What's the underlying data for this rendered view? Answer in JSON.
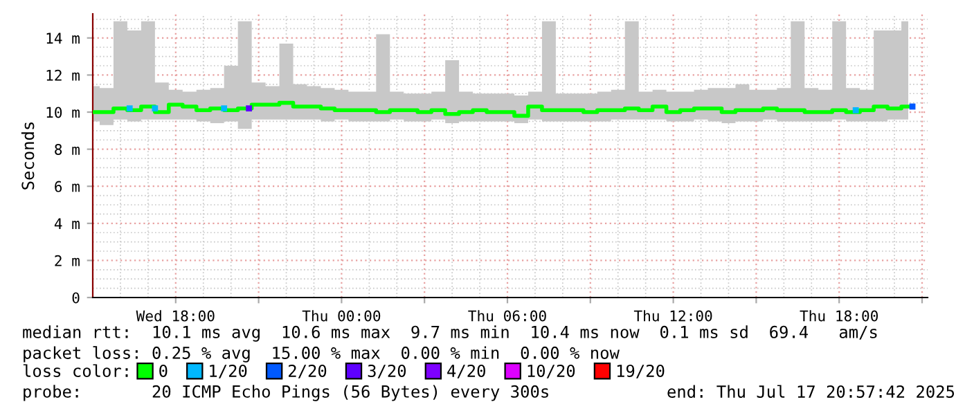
{
  "chart_data": {
    "type": "line",
    "ylabel": "Seconds",
    "legend_title": "loss color:",
    "legend": "bottom",
    "grid": true,
    "xlim": [
      "2025-07-16T15:00",
      "2025-07-17T21:12"
    ],
    "xticks": [
      {
        "value": "2025-07-16T18:00",
        "label": "Wed 18:00"
      },
      {
        "value": "2025-07-16T21:00",
        "label": null
      },
      {
        "value": "2025-07-17T00:00",
        "label": "Thu 00:00"
      },
      {
        "value": "2025-07-17T03:00",
        "label": null
      },
      {
        "value": "2025-07-17T06:00",
        "label": "Thu 06:00"
      },
      {
        "value": "2025-07-17T09:00",
        "label": null
      },
      {
        "value": "2025-07-17T12:00",
        "label": "Thu 12:00"
      },
      {
        "value": "2025-07-17T15:00",
        "label": null
      },
      {
        "value": "2025-07-17T18:00",
        "label": "Thu 18:00"
      },
      {
        "value": "2025-07-17T21:00",
        "label": null
      }
    ],
    "ylim": [
      0,
      15.3
    ],
    "yticks": [
      0,
      {
        "value": 2,
        "label": "2 m"
      },
      {
        "value": 4,
        "label": "4 m"
      },
      {
        "value": 6,
        "label": "6 m"
      },
      {
        "value": 8,
        "label": "8 m"
      },
      {
        "value": 10,
        "label": "10 m"
      },
      {
        "value": 12,
        "label": "12 m"
      },
      {
        "value": 14,
        "label": "14 m"
      }
    ],
    "series": [
      {
        "name": "0",
        "color": "#00ff00",
        "x": [
          "2025-07-16T15:00",
          "2025-07-16T15:30",
          "2025-07-16T16:00",
          "2025-07-16T16:30",
          "2025-07-16T17:00",
          "2025-07-16T17:30",
          "2025-07-16T18:00",
          "2025-07-16T18:30",
          "2025-07-16T19:00",
          "2025-07-16T19:30",
          "2025-07-16T20:00",
          "2025-07-16T20:30",
          "2025-07-16T21:00",
          "2025-07-16T21:30",
          "2025-07-16T22:00",
          "2025-07-16T22:30",
          "2025-07-16T23:00",
          "2025-07-16T23:30",
          "2025-07-17T00:00",
          "2025-07-17T00:30",
          "2025-07-17T01:00",
          "2025-07-17T01:30",
          "2025-07-17T02:00",
          "2025-07-17T02:30",
          "2025-07-17T03:00",
          "2025-07-17T03:30",
          "2025-07-17T04:00",
          "2025-07-17T04:30",
          "2025-07-17T05:00",
          "2025-07-17T05:30",
          "2025-07-17T06:00",
          "2025-07-17T06:30",
          "2025-07-17T07:00",
          "2025-07-17T07:30",
          "2025-07-17T08:00",
          "2025-07-17T08:30",
          "2025-07-17T09:00",
          "2025-07-17T09:30",
          "2025-07-17T10:00",
          "2025-07-17T10:30",
          "2025-07-17T11:00",
          "2025-07-17T11:30",
          "2025-07-17T12:00",
          "2025-07-17T12:30",
          "2025-07-17T13:00",
          "2025-07-17T13:30",
          "2025-07-17T14:00",
          "2025-07-17T14:30",
          "2025-07-17T15:00",
          "2025-07-17T15:30",
          "2025-07-17T16:00",
          "2025-07-17T16:30",
          "2025-07-17T17:00",
          "2025-07-17T17:30",
          "2025-07-17T18:00",
          "2025-07-17T18:30",
          "2025-07-17T19:00",
          "2025-07-17T19:30",
          "2025-07-17T20:00",
          "2025-07-17T20:30"
        ],
        "values": [
          10.0,
          10.0,
          10.2,
          10.1,
          10.3,
          10.0,
          10.4,
          10.3,
          10.1,
          10.2,
          10.1,
          10.2,
          10.4,
          10.4,
          10.5,
          10.3,
          10.3,
          10.2,
          10.1,
          10.1,
          10.1,
          10.0,
          10.1,
          10.1,
          10.0,
          10.1,
          9.9,
          10.0,
          10.1,
          10.0,
          10.0,
          9.8,
          10.3,
          10.1,
          10.1,
          10.1,
          10.0,
          10.1,
          10.1,
          10.2,
          10.1,
          10.3,
          10.0,
          10.1,
          10.2,
          10.2,
          10.0,
          10.1,
          10.1,
          10.2,
          10.1,
          10.1,
          10.0,
          10.0,
          10.1,
          10.0,
          10.1,
          10.3,
          10.2,
          10.3
        ],
        "lower": [
          9.5,
          9.3,
          9.6,
          9.5,
          9.6,
          9.6,
          9.6,
          9.6,
          9.5,
          9.4,
          9.5,
          9.1,
          9.6,
          9.6,
          9.6,
          9.6,
          9.6,
          9.5,
          9.6,
          9.5,
          9.5,
          9.5,
          9.6,
          9.5,
          9.5,
          9.6,
          9.4,
          9.5,
          9.5,
          9.5,
          9.5,
          9.4,
          9.6,
          9.5,
          9.5,
          9.5,
          9.5,
          9.5,
          9.6,
          9.6,
          9.6,
          9.6,
          9.5,
          9.5,
          9.6,
          9.5,
          9.4,
          9.5,
          9.5,
          9.6,
          9.5,
          9.5,
          9.5,
          9.5,
          9.6,
          9.5,
          9.5,
          9.5,
          9.6,
          9.6
        ],
        "upper": [
          11.4,
          11.3,
          14.9,
          14.4,
          14.9,
          11.6,
          11.2,
          11.1,
          11.2,
          11.3,
          12.5,
          14.9,
          11.6,
          11.4,
          13.7,
          11.5,
          11.4,
          11.3,
          11.2,
          11.1,
          11.1,
          14.2,
          11.1,
          11.0,
          11.0,
          11.1,
          12.8,
          11.1,
          11.0,
          11.0,
          11.0,
          10.9,
          11.1,
          14.9,
          11.0,
          11.0,
          11.0,
          11.1,
          11.2,
          14.9,
          11.1,
          11.2,
          11.1,
          11.1,
          11.2,
          11.3,
          11.3,
          11.5,
          11.2,
          11.2,
          11.3,
          14.9,
          11.3,
          11.2,
          14.9,
          11.3,
          11.2,
          14.4,
          14.4,
          14.9
        ]
      },
      {
        "name": "1/20",
        "type": "scatter",
        "marker": "square",
        "color": "#00b8ff",
        "x": [
          "2025-07-16T16:20",
          "2025-07-16T17:15",
          "2025-07-16T19:45",
          "2025-07-17T18:36"
        ],
        "values": [
          10.2,
          10.2,
          10.2,
          10.1
        ]
      },
      {
        "name": "2/20",
        "type": "scatter",
        "marker": "square",
        "color": "#0059ff",
        "x": [
          "2025-07-17T20:39"
        ],
        "values": [
          10.3
        ]
      },
      {
        "name": "3/20",
        "type": "scatter",
        "marker": "square",
        "color": "#5e00ff",
        "x": [
          "2025-07-16T20:39"
        ],
        "values": [
          10.2
        ]
      },
      {
        "name": "4/20",
        "type": "scatter",
        "color": "#7e00ff"
      },
      {
        "name": "10/20",
        "type": "scatter",
        "color": "#dd00ff"
      },
      {
        "name": "19/20",
        "type": "scatter",
        "color": "#ff0000"
      }
    ],
    "annotations": [
      "median rtt:  10.1 ms avg  10.6 ms max  9.7 ms min  10.4 ms now  0.1 ms sd  69.4   am/s",
      "packet loss: 0.25 % avg  15.00 % max  0.00 % min  0.00 % now",
      "probe:       20 ICMP Echo Pings (56 Bytes) every 300s",
      "end: Thu Jul 17 20:57:42 2025"
    ]
  }
}
